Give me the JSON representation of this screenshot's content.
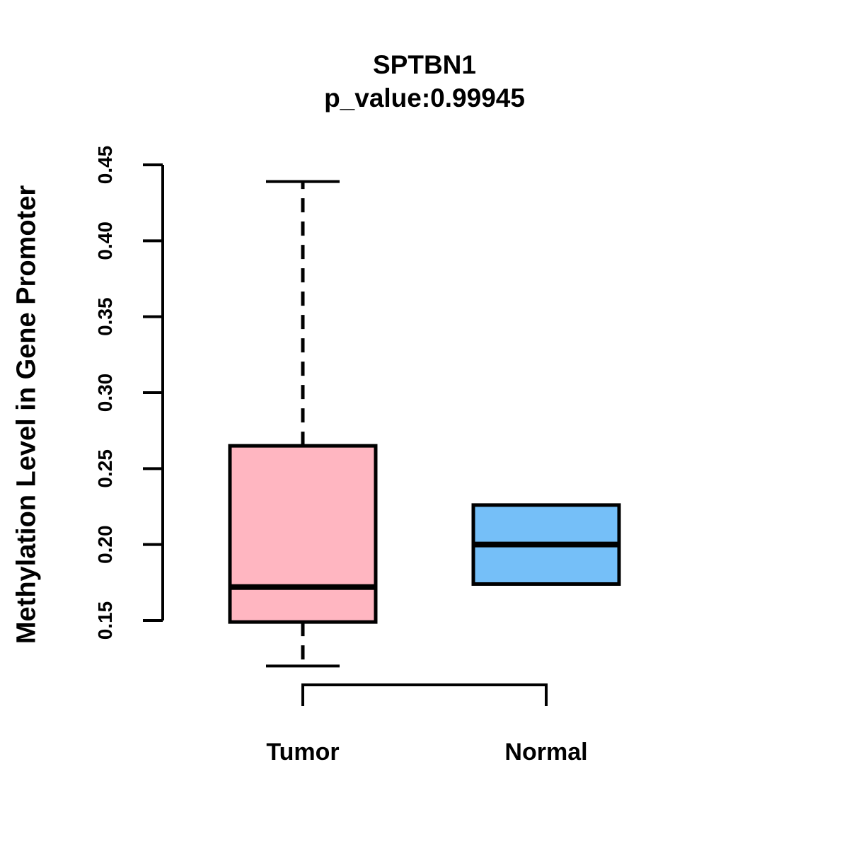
{
  "figure": {
    "background": "#FFFFFF",
    "title": "SPTBN1",
    "subtitle": "p_value:0.99945"
  },
  "chart_data": {
    "type": "boxplot",
    "title": "SPTBN1",
    "subtitle": "p_value:0.99945",
    "xlabel": "",
    "ylabel": "Methylation Level in Gene Promoter",
    "y_tick_labels": [
      "0.15",
      "0.20",
      "0.25",
      "0.30",
      "0.35",
      "0.40",
      "0.45"
    ],
    "ylim": [
      0.12,
      0.45
    ],
    "grid": false,
    "legend": "none",
    "categories": [
      "Tumor",
      "Normal"
    ],
    "series": [
      {
        "name": "Tumor",
        "color": "#FFB6C1",
        "whisker_low": 0.12,
        "q1": 0.149,
        "median": 0.172,
        "q3": 0.265,
        "whisker_high": 0.439
      },
      {
        "name": "Normal",
        "color": "#75BFF8",
        "whisker_low": 0.174,
        "q1": 0.174,
        "median": 0.2,
        "q3": 0.226,
        "whisker_high": 0.226
      }
    ],
    "comparison_bracket": {
      "between": [
        "Tumor",
        "Normal"
      ]
    },
    "stroke_color": "#000000"
  }
}
